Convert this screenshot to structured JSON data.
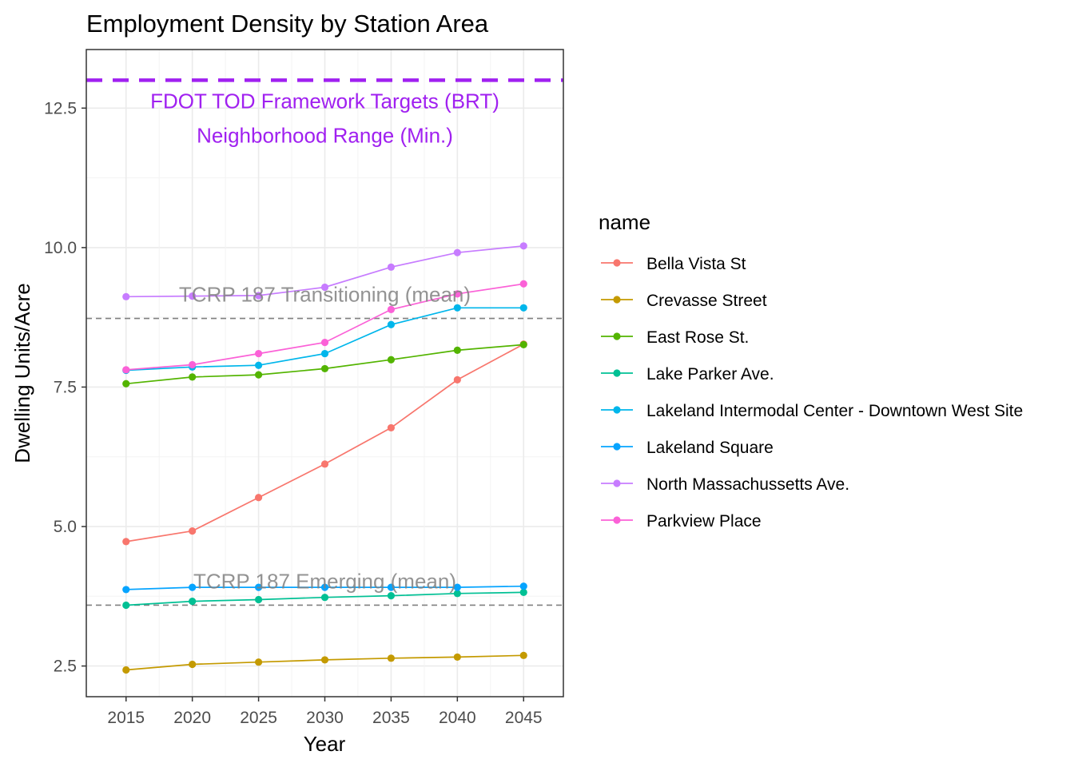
{
  "chart_data": {
    "type": "line",
    "title": "Employment Density by Station Area",
    "xlabel": "Year",
    "ylabel": "Dwelling Units/Acre",
    "x": [
      2015,
      2020,
      2025,
      2030,
      2035,
      2040,
      2045
    ],
    "xlim": [
      2012,
      2048
    ],
    "ylim": [
      1.95,
      13.55
    ],
    "y_ticks": [
      2.5,
      5.0,
      7.5,
      10.0,
      12.5
    ],
    "y_tick_labels": [
      "2.5",
      "5.0",
      "7.5",
      "10.0",
      "12.5"
    ],
    "x_tick_labels": [
      "2015",
      "2020",
      "2025",
      "2030",
      "2035",
      "2040",
      "2045"
    ],
    "grid": true,
    "legend": {
      "title": "name",
      "position": "right"
    },
    "series": [
      {
        "name": "Bella Vista St",
        "color": "#F8766D",
        "values": [
          4.73,
          4.92,
          5.52,
          6.12,
          6.77,
          7.63,
          8.27
        ]
      },
      {
        "name": "Crevasse Street",
        "color": "#C49A00",
        "values": [
          2.43,
          2.53,
          2.57,
          2.61,
          2.64,
          2.66,
          2.69
        ]
      },
      {
        "name": "East Rose St.",
        "color": "#53B400",
        "values": [
          7.56,
          7.68,
          7.72,
          7.83,
          7.99,
          8.16,
          8.26
        ]
      },
      {
        "name": "Lake Parker Ave.",
        "color": "#00C094",
        "values": [
          3.59,
          3.66,
          3.69,
          3.73,
          3.76,
          3.8,
          3.82
        ]
      },
      {
        "name": "Lakeland Intermodal Center - Downtown West Site",
        "color": "#00B6EB",
        "values": [
          7.8,
          7.86,
          7.89,
          8.1,
          8.62,
          8.92,
          8.92
        ]
      },
      {
        "name": "Lakeland Square",
        "color": "#06A4FF",
        "values": [
          3.87,
          3.91,
          3.91,
          3.91,
          3.91,
          3.91,
          3.93
        ]
      },
      {
        "name": "North Massachussetts Ave.",
        "color": "#C77CFF",
        "values": [
          9.12,
          9.13,
          9.14,
          9.29,
          9.65,
          9.91,
          10.03
        ]
      },
      {
        "name": "Parkview Place",
        "color": "#FB61D7",
        "values": [
          7.81,
          7.9,
          8.1,
          8.3,
          8.89,
          9.17,
          9.35
        ]
      }
    ],
    "reference_lines": [
      {
        "y": 13.0,
        "color": "#A020F0",
        "style": "dashed",
        "label": "FDOT TOD Framework Targets (BRT)",
        "label2": "Neighborhood Range (Min.)"
      },
      {
        "y": 8.73,
        "color": "#808080",
        "style": "dashed",
        "label": "TCRP 187 Transitioning (mean)"
      },
      {
        "y": 3.59,
        "color": "#808080",
        "style": "dashed",
        "label": "TCRP 187 Emerging (mean)"
      }
    ]
  }
}
